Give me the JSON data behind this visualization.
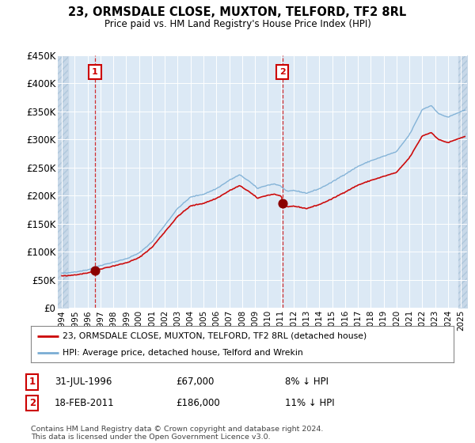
{
  "title": "23, ORMSDALE CLOSE, MUXTON, TELFORD, TF2 8RL",
  "subtitle": "Price paid vs. HM Land Registry's House Price Index (HPI)",
  "legend_line1": "23, ORMSDALE CLOSE, MUXTON, TELFORD, TF2 8RL (detached house)",
  "legend_line2": "HPI: Average price, detached house, Telford and Wrekin",
  "annotation1_date": "31-JUL-1996",
  "annotation1_price": "£67,000",
  "annotation1_hpi": "8% ↓ HPI",
  "annotation2_date": "18-FEB-2011",
  "annotation2_price": "£186,000",
  "annotation2_hpi": "11% ↓ HPI",
  "footer": "Contains HM Land Registry data © Crown copyright and database right 2024.\nThis data is licensed under the Open Government Licence v3.0.",
  "sale1_x": 1996.58,
  "sale1_y": 67000,
  "sale2_x": 2011.12,
  "sale2_y": 186000,
  "price_line_color": "#cc0000",
  "hpi_line_color": "#7aadd4",
  "sale_dot_color": "#8b0000",
  "vline_color": "#cc0000",
  "ylim": [
    0,
    450000
  ],
  "yticks": [
    0,
    50000,
    100000,
    150000,
    200000,
    250000,
    300000,
    350000,
    400000,
    450000
  ],
  "ytick_labels": [
    "£0",
    "£50K",
    "£100K",
    "£150K",
    "£200K",
    "£250K",
    "£300K",
    "£350K",
    "£400K",
    "£450K"
  ],
  "xlim_left": 1993.7,
  "xlim_right": 2025.5,
  "background_color": "#ffffff",
  "plot_bg_color": "#dce9f5",
  "hatch_bg_color": "#c8d8e8"
}
